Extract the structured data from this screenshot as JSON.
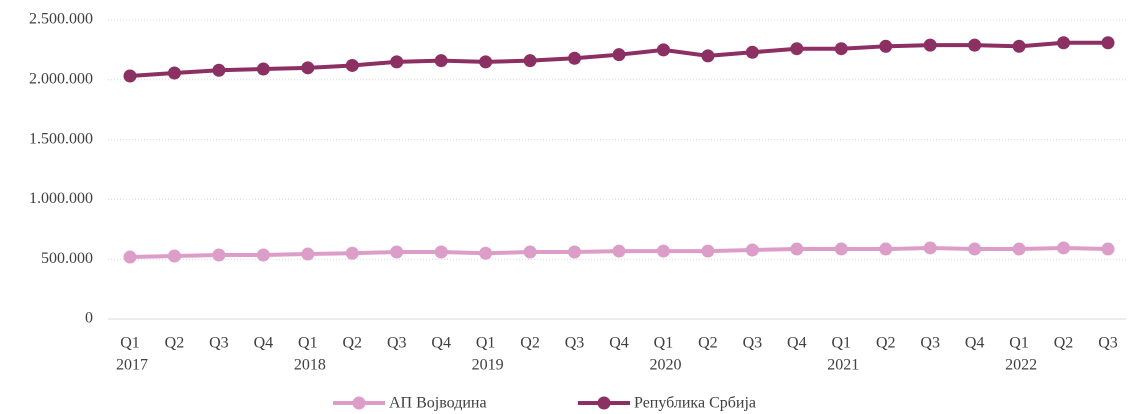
{
  "chart_data": {
    "type": "line",
    "categories": [
      "Q1",
      "Q2",
      "Q3",
      "Q4",
      "Q1",
      "Q2",
      "Q3",
      "Q4",
      "Q1",
      "Q2",
      "Q3",
      "Q4",
      "Q1",
      "Q2",
      "Q3",
      "Q4",
      "Q1",
      "Q2",
      "Q3",
      "Q4",
      "Q1",
      "Q2",
      "Q3"
    ],
    "years": [
      "2017",
      null,
      null,
      null,
      "2018",
      null,
      null,
      null,
      "2019",
      null,
      null,
      null,
      "2020",
      null,
      null,
      null,
      "2021",
      null,
      null,
      null,
      "2022",
      null,
      null
    ],
    "series": [
      {
        "name": "АП Војводина",
        "color": "#dc9ec8",
        "values": [
          518000,
          527000,
          535000,
          535000,
          543000,
          550000,
          560000,
          560000,
          550000,
          560000,
          560000,
          568000,
          568000,
          568000,
          577000,
          585000,
          585000,
          585000,
          594000,
          585000,
          585000,
          594000,
          585000
        ]
      },
      {
        "name": "Република Србија",
        "color": "#8c2f62",
        "values": [
          2032000,
          2057000,
          2080000,
          2090000,
          2100000,
          2120000,
          2150000,
          2160000,
          2150000,
          2160000,
          2180000,
          2210000,
          2250000,
          2200000,
          2230000,
          2260000,
          2260000,
          2280000,
          2290000,
          2290000,
          2280000,
          2310000,
          2310000
        ]
      }
    ],
    "ylim": [
      0,
      2500000
    ],
    "yticks": [
      0,
      {
        "value": 500000,
        "label": "500.000"
      },
      {
        "value": 1000000,
        "label": "1.000.000"
      },
      {
        "value": 1500000,
        "label": "1.500.000"
      },
      {
        "value": 2000000,
        "label": "2.000.000"
      },
      {
        "value": 2500000,
        "label": "2.500.000"
      }
    ],
    "grid": true,
    "legend": "bottom"
  }
}
